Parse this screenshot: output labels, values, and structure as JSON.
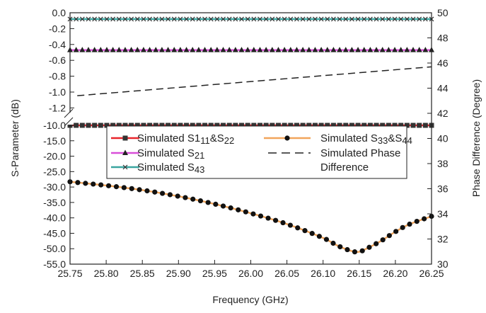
{
  "chart_data": {
    "type": "line",
    "xlabel": "Frequency (GHz)",
    "ylabel_left": "S-Parameter (dB)",
    "ylabel_right": "Phase Difference (Degree)",
    "xlim": [
      25.75,
      26.25
    ],
    "x_ticks": [
      "25.75",
      "25.80",
      "25.85",
      "25.90",
      "25.95",
      "26.00",
      "26.05",
      "26.10",
      "26.15",
      "26.20",
      "26.25"
    ],
    "y_left_upper_ticks": [
      "0.0",
      "-0.2",
      "-0.4",
      "-0.6",
      "-0.8",
      "-1.0",
      "-1.2"
    ],
    "y_left_lower_ticks": [
      "-10.0",
      "-15.0",
      "-20.0",
      "-25.0",
      "-30.0",
      "-35.0",
      "-40.0",
      "-45.0",
      "-50.0",
      "-55.0"
    ],
    "y_left_break": true,
    "y_left_upper_range": [
      -1.25,
      0.0
    ],
    "y_left_lower_range": [
      -55.0,
      -10.0
    ],
    "y_right_ticks": [
      "50",
      "48",
      "46",
      "44",
      "42",
      "40",
      "38",
      "36",
      "34",
      "32",
      "30"
    ],
    "y_right_range": [
      30,
      50
    ],
    "legend": {
      "placement": "center",
      "items": [
        {
          "text": "Simulated S1",
          "sub": "11",
          "text2": "&S",
          "sub2": "22",
          "color": "#e8252b",
          "marker": "square"
        },
        {
          "text": "Simulated S",
          "sub": "33",
          "text2": "&S",
          "sub2": "44",
          "color": "#f2a55b",
          "marker": "circle"
        },
        {
          "text": "Simulated S",
          "sub": "21",
          "text2": "",
          "sub2": "",
          "color": "#d94fd9",
          "marker": "triangle"
        },
        {
          "text": "Simulated Phase",
          "sub": "",
          "text2": "",
          "sub2": "",
          "color": "#222222",
          "marker": "none",
          "dash": true
        },
        {
          "text": "Simulated S",
          "sub": "43",
          "text2": "",
          "sub2": "",
          "color": "#3aa5a0",
          "marker": "x"
        },
        {
          "text": "Difference",
          "sub": "",
          "text2": "",
          "sub2": "",
          "color": "",
          "marker": "none"
        }
      ]
    },
    "series": [
      {
        "name": "Simulated S11&S22",
        "axis": "left",
        "color": "#e8252b",
        "marker": "square",
        "x_start": 25.75,
        "x_end": 26.25,
        "values": [
          -10.0,
          -10.0
        ]
      },
      {
        "name": "Simulated S21",
        "axis": "left",
        "color": "#d94fd9",
        "marker": "triangle",
        "x_start": 25.75,
        "x_end": 26.25,
        "values": [
          -0.47,
          -0.47
        ]
      },
      {
        "name": "Simulated S43",
        "axis": "left",
        "color": "#3aa5a0",
        "marker": "x",
        "x_start": 25.75,
        "x_end": 26.25,
        "values": [
          -0.08,
          -0.08
        ]
      },
      {
        "name": "Simulated Phase Difference",
        "axis": "right",
        "color": "#222222",
        "dash": true,
        "x": [
          25.76,
          26.25
        ],
        "values": [
          43.4,
          45.7
        ]
      },
      {
        "name": "Simulated S33&S44",
        "axis": "left",
        "color": "#f2a55b",
        "marker": "circle",
        "x": [
          25.75,
          25.8,
          25.85,
          25.9,
          25.95,
          26.0,
          26.05,
          26.1,
          26.12,
          26.14,
          26.15,
          26.16,
          26.18,
          26.2,
          26.22,
          26.25
        ],
        "values": [
          -28.3,
          -29.5,
          -31.0,
          -33.0,
          -35.5,
          -38.5,
          -42.0,
          -46.5,
          -49.0,
          -50.8,
          -51.0,
          -50.0,
          -47.5,
          -44.5,
          -42.0,
          -39.5
        ]
      }
    ]
  }
}
